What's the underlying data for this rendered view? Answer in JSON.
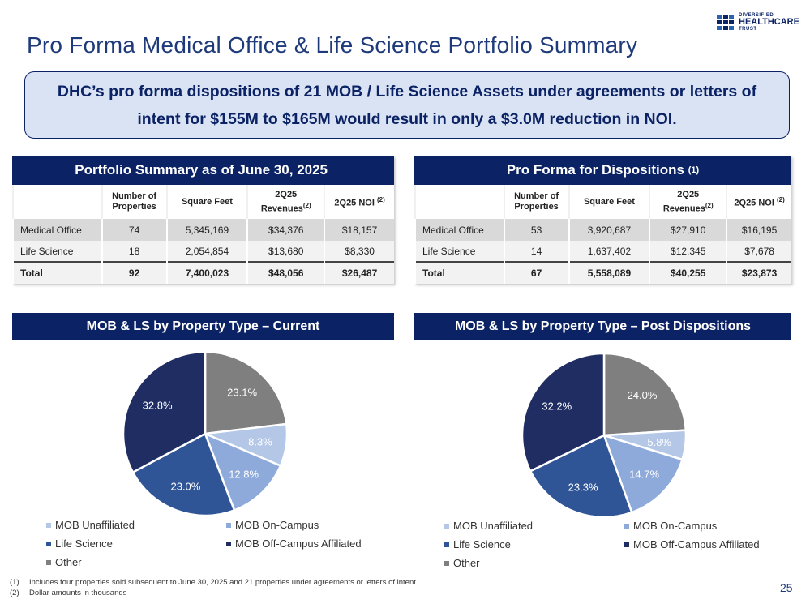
{
  "title": "Pro Forma Medical Office & Life Science Portfolio Summary",
  "logo": {
    "line1": "DIVERSIFIED",
    "line2": "HEALTHCARE",
    "line3": "TRUST"
  },
  "callout": "DHC’s pro forma dispositions of 21 MOB / Life Science Assets under agreements or letters of intent for $155M to $165M would result in only a $3.0M reduction in NOI.",
  "columns": {
    "props": "Number of Properties",
    "sqft": "Square Feet",
    "rev": "2Q25 Revenues",
    "rev_sup": "(2)",
    "noi": "2Q25 NOI",
    "noi_sup": "(2)"
  },
  "current_table": {
    "title": "Portfolio Summary as of June 30, 2025",
    "title_sup": "",
    "rows": [
      {
        "label": "Medical Office",
        "props": "74",
        "sqft": "5,345,169",
        "rev": "$34,376",
        "noi": "$18,157"
      },
      {
        "label": "Life Science",
        "props": "18",
        "sqft": "2,054,854",
        "rev": "$13,680",
        "noi": "$8,330"
      },
      {
        "label": "Total",
        "props": "92",
        "sqft": "7,400,023",
        "rev": "$48,056",
        "noi": "$26,487"
      }
    ]
  },
  "proforma_table": {
    "title": "Pro Forma for Dispositions",
    "title_sup": "(1)",
    "rows": [
      {
        "label": "Medical Office",
        "props": "53",
        "sqft": "3,920,687",
        "rev": "$27,910",
        "noi": "$16,195"
      },
      {
        "label": "Life Science",
        "props": "14",
        "sqft": "1,637,402",
        "rev": "$12,345",
        "noi": "$7,678"
      },
      {
        "label": "Total",
        "props": "67",
        "sqft": "5,558,089",
        "rev": "$40,255",
        "noi": "$23,873"
      }
    ]
  },
  "chart_data": [
    {
      "type": "pie",
      "title": "MOB & LS by Property Type – Current",
      "labels": [
        "Other",
        "MOB Unaffiliated",
        "MOB On-Campus",
        "Life Science",
        "MOB Off-Campus Affiliated"
      ],
      "values": [
        23.1,
        8.3,
        12.8,
        23.0,
        32.8
      ],
      "value_labels": [
        "23.1%",
        "8.3%",
        "12.8%",
        "23.0%",
        "32.8%"
      ],
      "colors": [
        "#7f7f7f",
        "#b4c7e7",
        "#8eaadb",
        "#2f5597",
        "#1f2d63"
      ],
      "legend_position": "bottom"
    },
    {
      "type": "pie",
      "title": "MOB & LS by Property Type – Post Dispositions",
      "labels": [
        "Other",
        "MOB Unaffiliated",
        "MOB On-Campus",
        "Life Science",
        "MOB Off-Campus Affiliated"
      ],
      "values": [
        24.0,
        5.8,
        14.7,
        23.3,
        32.2
      ],
      "value_labels": [
        "24.0%",
        "5.8%",
        "14.7%",
        "23.3%",
        "32.2%"
      ],
      "colors": [
        "#7f7f7f",
        "#b4c7e7",
        "#8eaadb",
        "#2f5597",
        "#1f2d63"
      ],
      "legend_position": "bottom"
    }
  ],
  "legend": [
    {
      "label": "MOB Unaffiliated",
      "color": "#b4c7e7"
    },
    {
      "label": "MOB On-Campus",
      "color": "#8eaadb"
    },
    {
      "label": "Life Science",
      "color": "#2f5597"
    },
    {
      "label": "MOB Off-Campus Affiliated",
      "color": "#1f2d63"
    },
    {
      "label": "Other",
      "color": "#7f7f7f"
    }
  ],
  "footnotes": [
    {
      "num": "(1)",
      "text": "Includes four properties sold subsequent to June 30, 2025 and 21 properties under agreements or letters of intent."
    },
    {
      "num": "(2)",
      "text": "Dollar amounts in thousands"
    }
  ],
  "page_number": "25"
}
